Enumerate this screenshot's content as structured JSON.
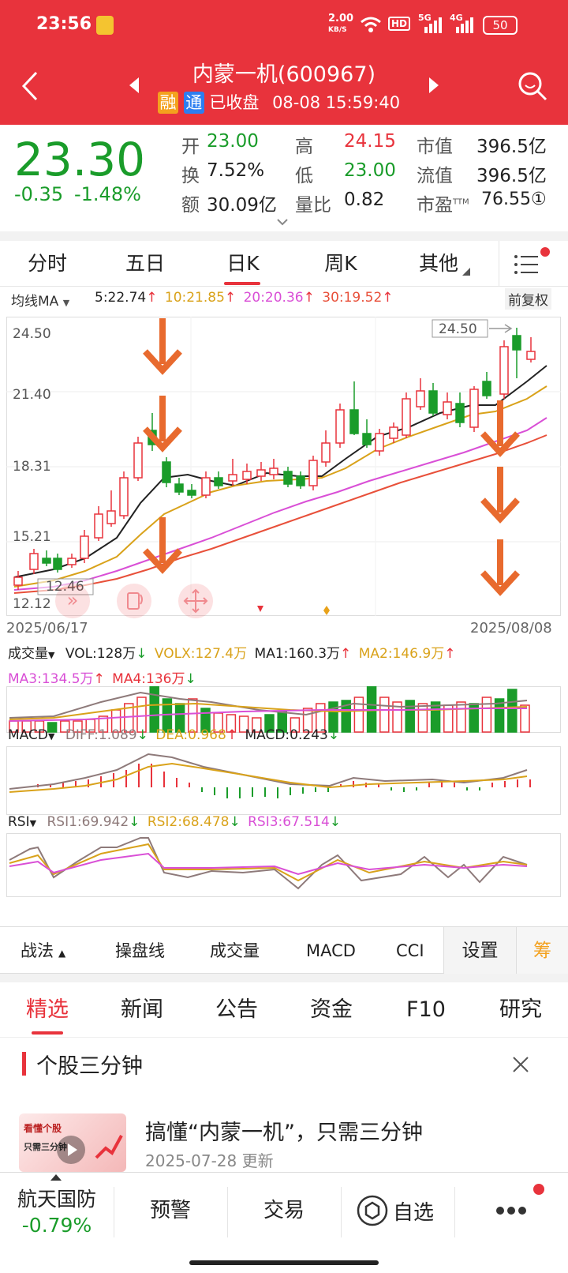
{
  "status_bar": {
    "time": "23:56",
    "net_speed_value": "2.00",
    "net_speed_unit": "KB/S",
    "hd": "HD",
    "sig1": "5G",
    "sig2": "4G",
    "battery": "50"
  },
  "header": {
    "title": "内蒙一机(600967)",
    "badge_rong": "融",
    "badge_tong": "通",
    "status": "已收盘",
    "datetime": "08-08 15:59:40"
  },
  "quote": {
    "price": "23.30",
    "change": "-0.35",
    "change_pct": "-1.48%",
    "open_label": "开",
    "open": "23.00",
    "high_label": "高",
    "high": "24.15",
    "mktcap_label": "市值",
    "mktcap": "396.5亿",
    "turnover_label": "换",
    "turnover": "7.52%",
    "low_label": "低",
    "low": "23.00",
    "float_label": "流值",
    "float": "396.5亿",
    "amount_label": "额",
    "amount": "30.09亿",
    "volratio_label": "量比",
    "volratio": "0.82",
    "pe_label": "市盈",
    "pe_sup": "TTM",
    "pe": "76.55①"
  },
  "ktabs": [
    "分时",
    "五日",
    "日K",
    "周K",
    "其他"
  ],
  "ma_legend": {
    "label": "均线MA",
    "ma5": "5:22.74",
    "ma10": "10:21.85",
    "ma20": "20:20.36",
    "ma30": "30:19.52",
    "adjust": "前复权"
  },
  "price_chart": {
    "y_labels": [
      "24.50",
      "21.40",
      "18.31",
      "15.21",
      "12.12"
    ],
    "high_tag": "24.50",
    "low_tag": "12.46",
    "date_start": "2025/06/17",
    "date_end": "2025/08/08"
  },
  "volume_legend": {
    "label": "成交量",
    "vol": "VOL:128万",
    "volx": "VOLX:127.4万",
    "ma1": "MA1:160.3万",
    "ma2": "MA2:146.9万",
    "ma3": "MA3:134.5万",
    "ma4": "MA4:136万"
  },
  "macd_legend": {
    "label": "MACD",
    "diff": "DIFF:1.089",
    "dea": "DEA:0.968",
    "macd": "MACD:0.243"
  },
  "rsi_legend": {
    "label": "RSI",
    "rsi1": "RSI1:69.942",
    "rsi2": "RSI2:68.478",
    "rsi3": "RSI3:67.514"
  },
  "toolbar": {
    "zhanfa": "战法",
    "caopan": "操盘线",
    "volume": "成交量",
    "macd": "MACD",
    "cci": "CCI",
    "settings": "设置",
    "chou": "筹"
  },
  "news_tabs": [
    "精选",
    "新闻",
    "公告",
    "资金",
    "F10",
    "研究"
  ],
  "section": {
    "title": "个股三分钟",
    "article_title": "搞懂“内蒙一机”，只需三分钟",
    "article_date": "2025-07-28 更新",
    "thumb_text1": "看懂个股",
    "thumb_text2": "只需三分钟"
  },
  "bottom_nav": {
    "sector": "航天国防",
    "sector_change": "-0.79%",
    "alert": "预警",
    "trade": "交易",
    "watchlist": "自选"
  },
  "colors": {
    "up": "#e8333c",
    "down": "#1a9c2a",
    "ma5": "#222222",
    "ma10": "#d9a21a",
    "ma20": "#d94fd6",
    "ma30": "#e8503a",
    "arrow": "#e86a2e"
  }
}
